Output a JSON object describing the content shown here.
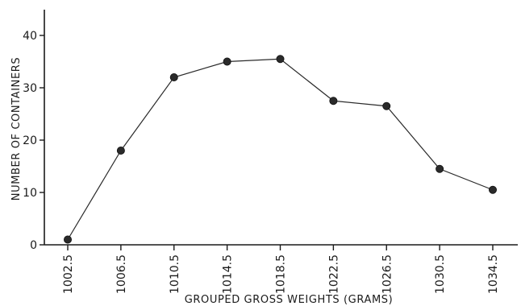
{
  "chart_data": {
    "type": "line",
    "title": "",
    "xlabel": "GROUPED GROSS WEIGHTS (GRAMS)",
    "ylabel": "NUMBER OF CONTAINERS",
    "categories": [
      "1002.5",
      "1006.5",
      "1010.5",
      "1014.5",
      "1018.5",
      "1022.5",
      "1026.5",
      "1030.5",
      "1034.5"
    ],
    "values": [
      1,
      18,
      32,
      35,
      35.5,
      27.5,
      26.5,
      14.5,
      10.5
    ],
    "y_ticks": [
      "0",
      "10",
      "20",
      "30",
      "40"
    ],
    "ylim": [
      0,
      45
    ],
    "grid": false,
    "legend": "none",
    "colors": {
      "line": "#2a2a2a",
      "marker": "#2a2a2a",
      "axis": "#1a1a1a"
    }
  }
}
